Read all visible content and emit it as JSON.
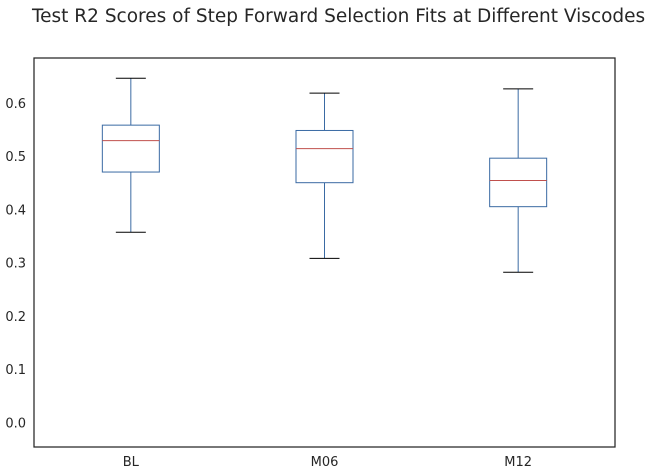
{
  "chart_data": {
    "type": "box",
    "title": "Test R2 Scores of Step Forward Selection Fits at Different Viscodes",
    "xlabel": "",
    "ylabel": "",
    "categories": [
      "BL",
      "M06",
      "M12"
    ],
    "boxes": [
      {
        "label": "BL",
        "whisker_low": 0.358,
        "q1": 0.471,
        "median": 0.53,
        "q3": 0.559,
        "whisker_high": 0.647
      },
      {
        "label": "M06",
        "whisker_low": 0.309,
        "q1": 0.451,
        "median": 0.515,
        "q3": 0.549,
        "whisker_high": 0.619
      },
      {
        "label": "M12",
        "whisker_low": 0.283,
        "q1": 0.406,
        "median": 0.455,
        "q3": 0.497,
        "whisker_high": 0.627
      }
    ],
    "ylim": [
      -0.045,
      0.685
    ],
    "yticks": [
      0.0,
      0.1,
      0.2,
      0.3,
      0.4,
      0.5,
      0.6
    ],
    "ytick_labels": [
      "0.0",
      "0.1",
      "0.2",
      "0.3",
      "0.4",
      "0.5",
      "0.6"
    ],
    "grid": false,
    "colors": {
      "box": "#3a6aa3",
      "median": "#c0504d",
      "whisker_cap": "#000000",
      "frame": "#262626"
    }
  }
}
